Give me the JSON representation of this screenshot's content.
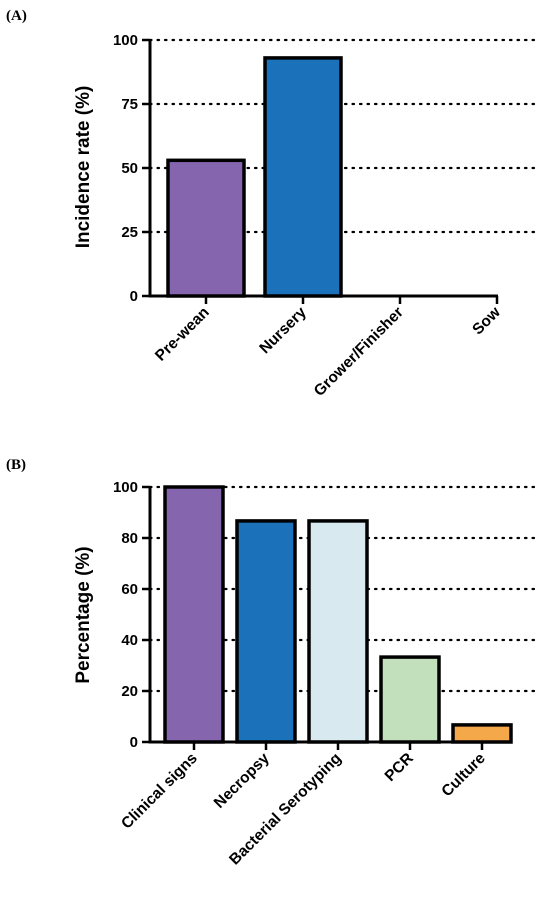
{
  "chart_data": [
    {
      "type": "bar",
      "panel_label": "(A)",
      "ylabel": "Incidence rate (%)",
      "ylim": [
        0,
        100
      ],
      "yticks": [
        0,
        25,
        50,
        75,
        100
      ],
      "grid": "horizontal dotted",
      "categories": [
        "Pre-wean",
        "Nursery",
        "Grower/Finisher",
        "Sow"
      ],
      "values": [
        53,
        93,
        0,
        0
      ],
      "colors": [
        "#8565AE",
        "#1B72BA",
        "#1B72BA",
        "#1B72BA"
      ]
    },
    {
      "type": "bar",
      "panel_label": "(B)",
      "ylabel": "Percentage (%)",
      "ylim": [
        0,
        100
      ],
      "yticks": [
        0,
        20,
        40,
        60,
        80,
        100
      ],
      "grid": "horizontal dotted",
      "categories": [
        "Clinical signs",
        "Necropsy",
        "Bacterial Serotyping",
        "PCR",
        "Culture"
      ],
      "values": [
        100,
        86.7,
        86.7,
        33.3,
        6.7
      ],
      "colors": [
        "#8565AE",
        "#1B72BA",
        "#D8E9EF",
        "#C2E0BB",
        "#F5A84A"
      ]
    }
  ]
}
